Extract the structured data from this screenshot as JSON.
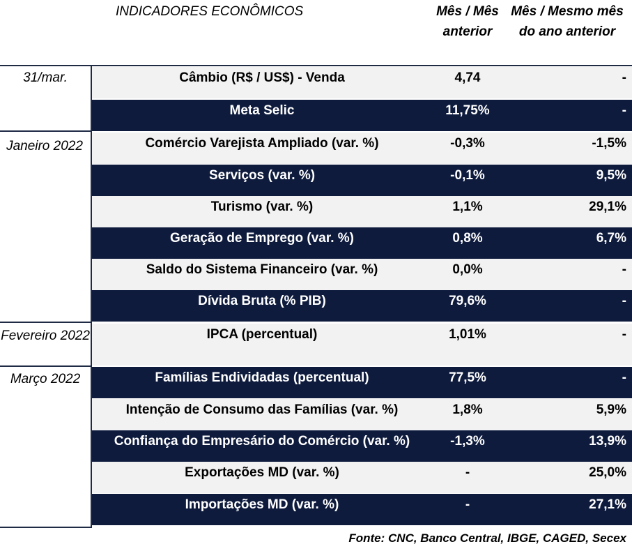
{
  "header": {
    "title": "INDICADORES ECONÔMICOS",
    "col1": "Mês / Mês anterior",
    "col2": "Mês / Mesmo mês do ano anterior"
  },
  "periods": [
    "31/mar.",
    "Janeiro 2022",
    "Fevereiro 2022",
    "Março 2022"
  ],
  "rows": [
    {
      "label": "Câmbio (R$ / US$) - Venda",
      "v1": "4,74",
      "v2": "-"
    },
    {
      "label": "Meta Selic",
      "v1": "11,75%",
      "v2": "-"
    },
    {
      "label": "Comércio Varejista Ampliado (var. %)",
      "v1": "-0,3%",
      "v2": "-1,5%"
    },
    {
      "label": "Serviços (var. %)",
      "v1": "-0,1%",
      "v2": "9,5%"
    },
    {
      "label": "Turismo (var. %)",
      "v1": "1,1%",
      "v2": "29,1%"
    },
    {
      "label": "Geração de Emprego (var. %)",
      "v1": "0,8%",
      "v2": "6,7%"
    },
    {
      "label": "Saldo do Sistema Financeiro (var. %)",
      "v1": "0,0%",
      "v2": "-"
    },
    {
      "label": "Dívida Bruta (% PIB)",
      "v1": "79,6%",
      "v2": "-"
    },
    {
      "label": "IPCA (percentual)",
      "v1": "1,01%",
      "v2": "-"
    },
    {
      "label": "Famílias Endividadas (percentual)",
      "v1": "77,5%",
      "v2": "-"
    },
    {
      "label": "Intenção de Consumo das Famílias (var. %)",
      "v1": "1,8%",
      "v2": "5,9%"
    },
    {
      "label": "Confiança do Empresário do Comércio (var. %)",
      "v1": "-1,3%",
      "v2": "13,9%"
    },
    {
      "label": "Exportações MD (var. %)",
      "v1": "-",
      "v2": "25,0%"
    },
    {
      "label": "Importações MD (var. %)",
      "v1": "-",
      "v2": "27,1%"
    }
  ],
  "source": "Fonte: CNC, Banco Central, IBGE, CAGED, Secex"
}
